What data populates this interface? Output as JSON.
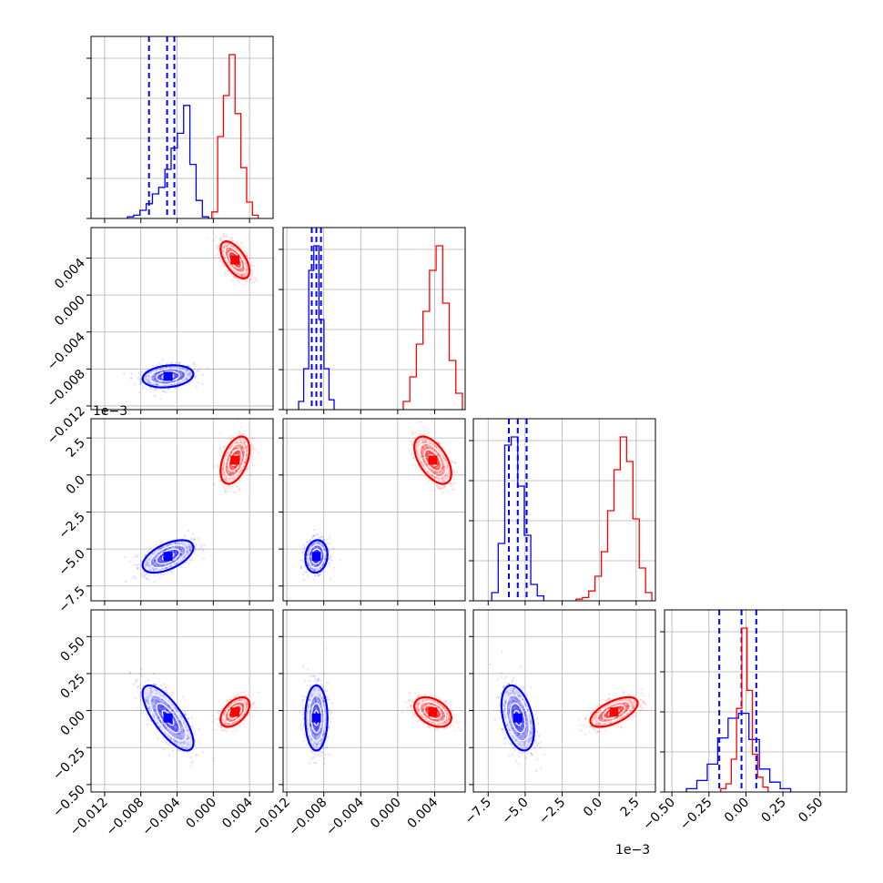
{
  "chart_data": {
    "type": "corner",
    "title": "",
    "parameters": [
      "",
      "",
      "",
      ""
    ],
    "grid": true,
    "colors": {
      "blue": "#0000ff",
      "red": "#ff0000",
      "grid": "#b0b0b0"
    },
    "axes": [
      {
        "range": [
          -0.0135,
          0.0066
        ],
        "ticks": [
          -0.012,
          -0.008,
          -0.004,
          0.0,
          0.004
        ],
        "tick_labels": [
          "−0.012",
          "−0.008",
          "−0.004",
          "0.000",
          "0.004"
        ],
        "offset_label": ""
      },
      {
        "range": [
          -0.0124,
          0.0073
        ],
        "ticks": [
          -0.012,
          -0.008,
          -0.004,
          0.0,
          0.004
        ],
        "tick_labels": [
          "−0.012",
          "−0.008",
          "−0.004",
          "0.000",
          "0.004"
        ],
        "offset_label": ""
      },
      {
        "range": [
          -8.5,
          3.8
        ],
        "ticks": [
          -7.5,
          -5.0,
          -2.5,
          0.0,
          2.5
        ],
        "tick_labels": [
          "−7.5",
          "−5.0",
          "−2.5",
          "0.0",
          "2.5"
        ],
        "offset_label": "1e−3"
      },
      {
        "range": [
          -0.55,
          0.68
        ],
        "ticks": [
          -0.5,
          -0.25,
          0.0,
          0.25,
          0.5
        ],
        "tick_labels": [
          "−0.50",
          "−0.25",
          "0.00",
          "0.25",
          "0.50"
        ],
        "offset_label": ""
      }
    ],
    "series": [
      {
        "color": "blue",
        "means": [
          -0.005,
          -0.0088,
          -5.5,
          -0.05
        ],
        "sds": [
          0.0014,
          0.0006,
          0.55,
          0.11
        ],
        "quantile_lines": [
          [
            -0.0071,
            -0.0051,
            -0.0043
          ],
          [
            -0.0093,
            -0.0088,
            -0.0083
          ],
          [
            -6.1,
            -5.5,
            -4.9
          ],
          [
            -0.18,
            -0.03,
            0.07
          ]
        ],
        "correlations": [
          [
            0,
            1,
            0.2
          ],
          [
            0,
            2,
            0.55
          ],
          [
            0,
            3,
            -0.75
          ],
          [
            1,
            2,
            0.1
          ],
          [
            1,
            3,
            0.0
          ],
          [
            2,
            3,
            -0.4
          ]
        ],
        "hist": [
          [
            0.01,
            0.02,
            0.05,
            0.09,
            0.15,
            0.19,
            0.3,
            0.43,
            0.52,
            0.69,
            0.33,
            0.11,
            0.01
          ],
          [
            0.05,
            0.25,
            0.85,
            1.0,
            0.55,
            0.25,
            0.06
          ],
          [
            0.05,
            0.35,
            0.95,
            1.0,
            0.7,
            0.4,
            0.1,
            0.03
          ],
          [
            0.02,
            0.07,
            0.17,
            0.33,
            0.45,
            0.48,
            0.32,
            0.14,
            0.06,
            0.02
          ]
        ]
      },
      {
        "color": "red",
        "means": [
          0.0024,
          0.0038,
          1.0,
          -0.01
        ],
        "sds": [
          0.0008,
          0.001,
          0.8,
          0.05
        ],
        "quantile_lines": null,
        "correlations": [
          [
            0,
            1,
            -0.6
          ],
          [
            0,
            2,
            0.45
          ],
          [
            0,
            3,
            0.5
          ],
          [
            1,
            2,
            -0.55
          ],
          [
            1,
            3,
            -0.4
          ],
          [
            2,
            3,
            0.6
          ]
        ],
        "hist": [
          [
            0.04,
            0.5,
            0.75,
            1.0,
            0.64,
            0.31,
            0.1,
            0.02
          ],
          [
            0.05,
            0.2,
            0.4,
            0.6,
            0.85,
            1.0,
            0.65,
            0.3,
            0.1
          ],
          [
            0.01,
            0.02,
            0.06,
            0.15,
            0.3,
            0.55,
            0.8,
            1.0,
            0.85,
            0.5,
            0.2,
            0.05
          ],
          [
            0.02,
            0.05,
            0.2,
            0.51,
            1.0,
            0.62,
            0.23,
            0.09,
            0.03
          ]
        ]
      }
    ]
  }
}
